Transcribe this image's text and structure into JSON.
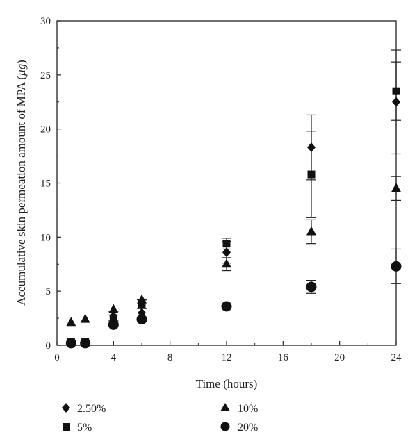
{
  "chart_data": {
    "type": "scatter",
    "xlabel": "Time (hours)",
    "ylabel_prefix": "Accumulative skin permeation amount of MPA (",
    "ylabel_unit": "μg",
    "ylabel_suffix": ")",
    "xlim": [
      0,
      24
    ],
    "ylim": [
      0,
      30
    ],
    "xticks": [
      0,
      4,
      8,
      12,
      16,
      20,
      24
    ],
    "yticks": [
      0,
      5,
      10,
      15,
      20,
      25,
      30
    ],
    "grid": false,
    "legend_position": "bottom",
    "series": [
      {
        "name": "2.50%",
        "marker": "diamond",
        "points": [
          {
            "x": 1,
            "y": 0.2
          },
          {
            "x": 2,
            "y": 0.2
          },
          {
            "x": 4,
            "y": 2.7,
            "err": 0.4
          },
          {
            "x": 6,
            "y": 3.0,
            "err": 0.4
          },
          {
            "x": 12,
            "y": 8.6,
            "err": 1.0
          },
          {
            "x": 18,
            "y": 18.3,
            "err": 3.0
          },
          {
            "x": 24,
            "y": 22.5,
            "err": 4.8
          }
        ]
      },
      {
        "name": "5%",
        "marker": "square",
        "points": [
          {
            "x": 1,
            "y": 0.3
          },
          {
            "x": 2,
            "y": 0.3
          },
          {
            "x": 4,
            "y": 2.5,
            "err": 0.3
          },
          {
            "x": 6,
            "y": 3.8,
            "err": 0.4
          },
          {
            "x": 12,
            "y": 9.4,
            "err": 0.5
          },
          {
            "x": 18,
            "y": 15.8,
            "err": 4.0
          },
          {
            "x": 24,
            "y": 23.5,
            "err": 2.7
          }
        ]
      },
      {
        "name": "10%",
        "marker": "triangle",
        "points": [
          {
            "x": 1,
            "y": 2.1
          },
          {
            "x": 2,
            "y": 2.4
          },
          {
            "x": 4,
            "y": 3.3
          },
          {
            "x": 6,
            "y": 4.2
          },
          {
            "x": 12,
            "y": 7.5,
            "err": 0.6
          },
          {
            "x": 18,
            "y": 10.5,
            "err": 1.1
          },
          {
            "x": 24,
            "y": 14.5,
            "err": 1.1
          }
        ]
      },
      {
        "name": "20%",
        "marker": "circle",
        "points": [
          {
            "x": 1,
            "y": 0.2
          },
          {
            "x": 2,
            "y": 0.2
          },
          {
            "x": 4,
            "y": 1.9
          },
          {
            "x": 6,
            "y": 2.4,
            "err": 0.2
          },
          {
            "x": 12,
            "y": 3.6
          },
          {
            "x": 18,
            "y": 5.4,
            "err": 0.6
          },
          {
            "x": 24,
            "y": 7.3,
            "err": 1.6
          }
        ]
      }
    ]
  }
}
